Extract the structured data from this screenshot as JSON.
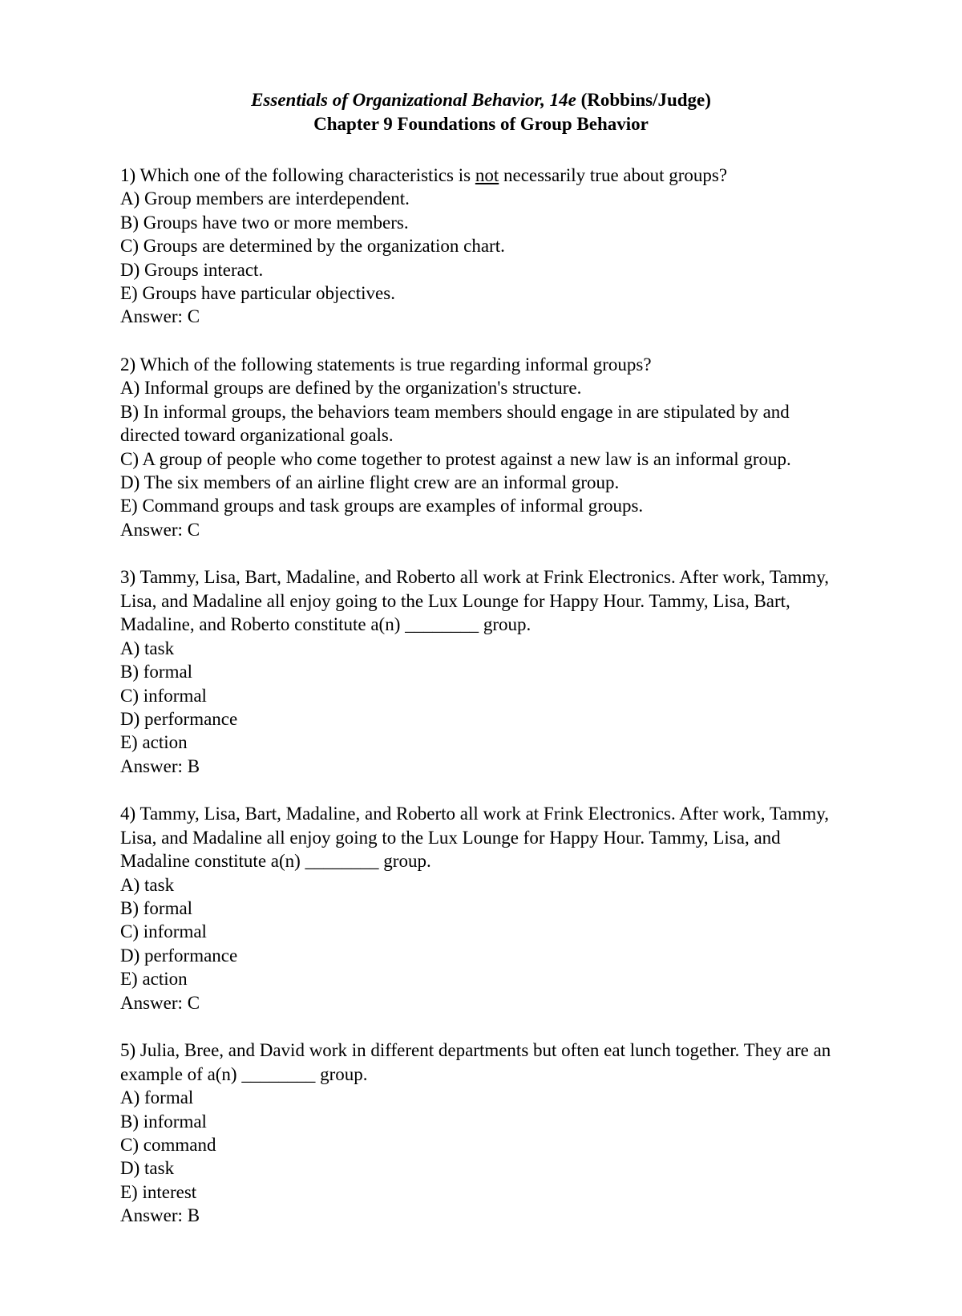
{
  "header": {
    "book_title": "Essentials of Organizational Behavior, 14e",
    "authors": " (Robbins/Judge)",
    "chapter": "Chapter 9   Foundations of Group Behavior"
  },
  "answer_label": "Answer:  ",
  "questions": [
    {
      "num": "1)",
      "stem_pre": " Which one of the following characteristics is ",
      "stem_underline": "not",
      "stem_post": " necessarily true about groups?",
      "options": [
        "A) Group members are interdependent.",
        "B) Groups have two or more members.",
        "C) Groups are determined by the organization chart.",
        "D) Groups interact.",
        "E) Groups have particular objectives."
      ],
      "answer": "C"
    },
    {
      "num": "2)",
      "stem": " Which of the following statements is true regarding informal groups?",
      "options": [
        "A) Informal groups are defined by the organization's structure.",
        "B) In informal groups, the behaviors team members should engage in are stipulated by and directed toward organizational goals.",
        "C) A group of people who come together to protest against a new law is an informal group.",
        "D) The six members of an airline flight crew are an informal group.",
        "E) Command groups and task groups are examples of informal groups."
      ],
      "answer": "C"
    },
    {
      "num": "3)",
      "stem": " Tammy, Lisa, Bart, Madaline, and Roberto all work at Frink Electronics. After work, Tammy, Lisa, and Madaline all enjoy going to the Lux Lounge for Happy Hour. Tammy, Lisa, Bart, Madaline, and Roberto constitute a(n) ________ group.",
      "options": [
        "A) task",
        "B) formal",
        "C) informal",
        "D) performance",
        "E) action"
      ],
      "answer": "B"
    },
    {
      "num": "4)",
      "stem": " Tammy, Lisa, Bart, Madaline, and Roberto all work at Frink Electronics. After work, Tammy, Lisa, and Madaline all enjoy going to the Lux Lounge for Happy Hour. Tammy, Lisa, and Madaline constitute a(n) ________ group.",
      "options": [
        "A) task",
        "B) formal",
        "C) informal",
        "D) performance",
        "E) action"
      ],
      "answer": "C"
    },
    {
      "num": "5)",
      "stem": " Julia, Bree, and David work in different departments but often eat lunch together. They are an example of a(n) ________ group.",
      "options": [
        "A) formal",
        "B) informal",
        "C) command",
        "D) task",
        "E) interest"
      ],
      "answer": "B"
    }
  ]
}
